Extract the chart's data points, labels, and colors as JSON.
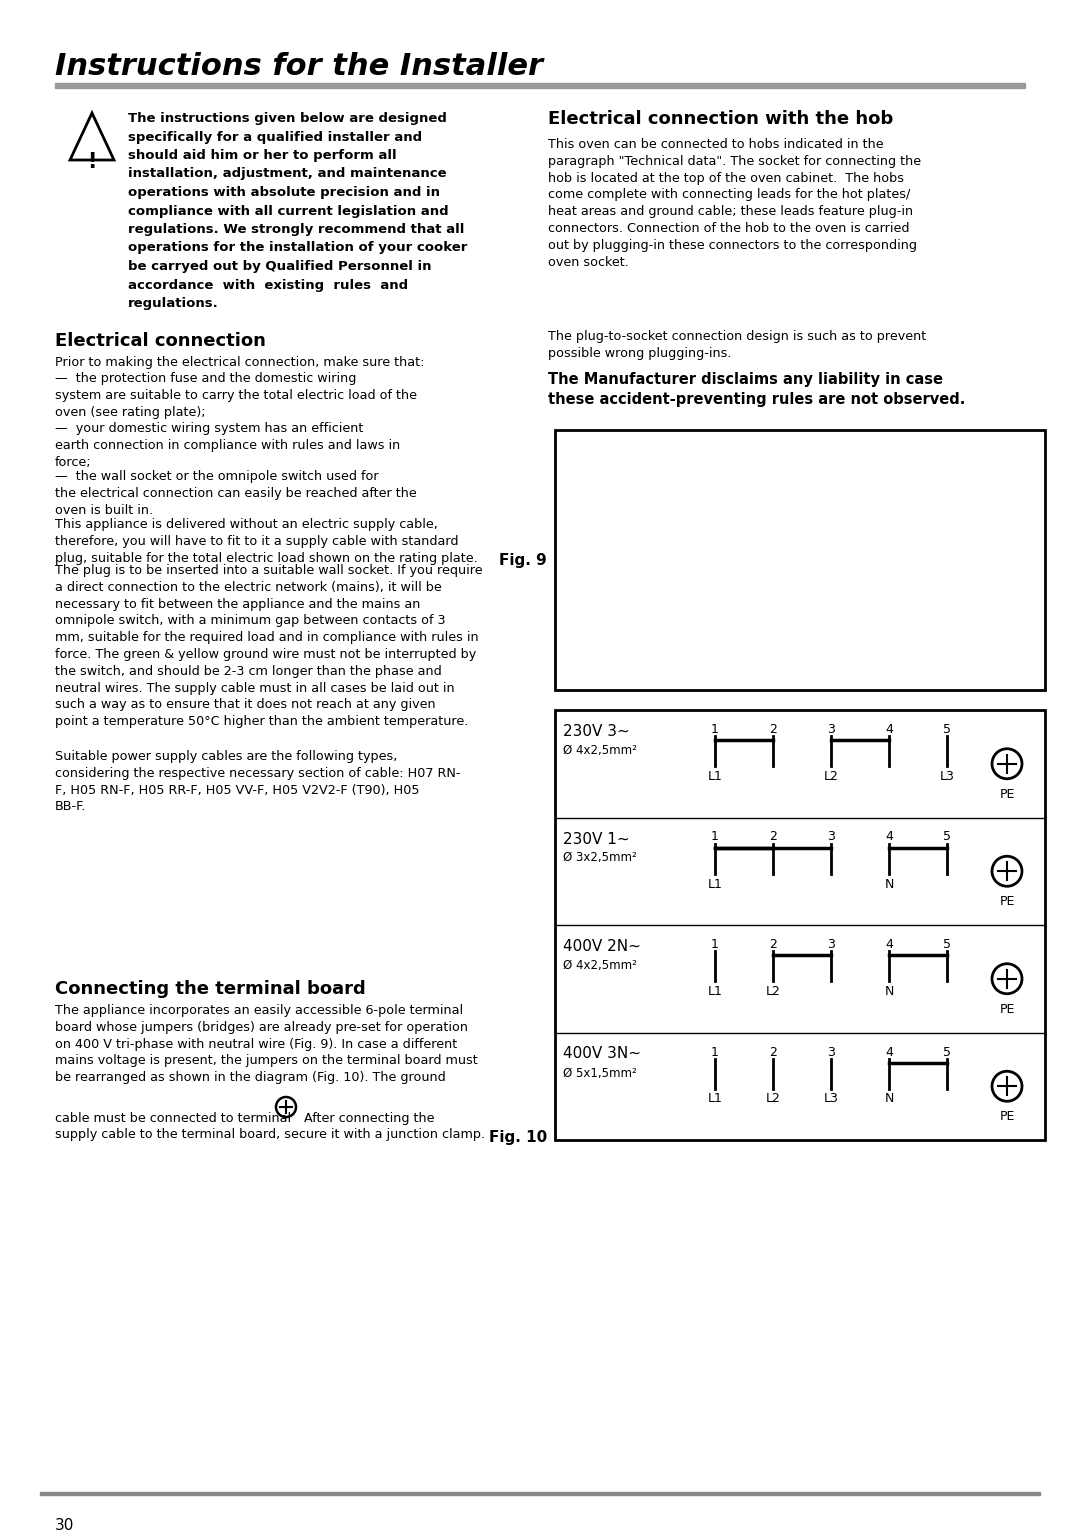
{
  "title": "Instructions for the Installer",
  "page_number": "30",
  "background_color": "#ffffff",
  "text_color": "#000000",
  "warning_lines": [
    "The instructions given below are designed",
    "specifically for a qualified installer and",
    "should aid him or her to perform all",
    "installation, adjustment, and maintenance",
    "operations with absolute precision and in",
    "compliance with all current legislation and",
    "regulations. We strongly recommend that all",
    "operations for the installation of your cooker",
    "be carryed out by Qualified Personnel in",
    "accordance  with  existing  rules  and",
    "regulations."
  ],
  "ec_heading": "Electrical connection",
  "ec_para0": "Prior to making the electrical connection, make sure that:",
  "ec_para1": "—  the protection fuse and the domestic wiring\nsystem are suitable to carry the total electric load of the\noven (see rating plate);",
  "ec_para2": "—  your domestic wiring system has an efficient\nearth connection in compliance with rules and laws in\nforce;",
  "ec_para3": "—  the wall socket or the omnipole switch used for\nthe electrical connection can easily be reached after the\noven is built in.",
  "ec_para4": "This appliance is delivered without an electric supply cable,\ntherefore, you will have to fit to it a supply cable with standard\nplug, suitable for the total electric load shown on the rating plate.",
  "ec_para5": "The plug is to be inserted into a suitable wall socket. If you require\na direct connection to the electric network (mains), it will be\nnecessary to fit between the appliance and the mains an\nomnipole switch, with a minimum gap between contacts of 3\nmm, suitable for the required load and in compliance with rules in\nforce. The green & yellow ground wire must not be interrupted by\nthe switch, and should be 2-3 cm longer than the phase and\nneutral wires. The supply cable must in all cases be laid out in\nsuch a way as to ensure that it does not reach at any given\npoint a temperature 50°C higher than the ambient temperature.",
  "ec_para6": "Suitable power supply cables are the following types,\nconsidering the respective necessary section of cable: H07 RN-\nF, H05 RN-F, H05 RR-F, H05 VV-F, H05 V2V2-F (T90), H05\nBB-F.",
  "ctb_heading": "Connecting the terminal board",
  "ctb_para1": "The appliance incorporates an easily accessible 6-pole terminal\nboard whose jumpers (bridges) are already pre-set for operation\non 400 V tri-phase with neutral wire (Fig. 9). In case a different\nmains voltage is present, the jumpers on the terminal board must\nbe rearranged as shown in the diagram (Fig. 10). The ground",
  "ctb_para2a": "cable must be connected to terminal",
  "ctb_para2b": " After connecting the",
  "ctb_para3": "supply cable to the terminal board, secure it with a junction clamp.",
  "hob_heading": "Electrical connection with the hob",
  "hob_para1": "This oven can be connected to hobs indicated in the\nparagraph \"Technical data\". The socket for connecting the\nhob is located at the top of the oven cabinet.  The hobs\ncome complete with connecting leads for the hot plates/\nheat areas and ground cable; these leads feature plug-in\nconnectors. Connection of the hob to the oven is carried\nout by plugging-in these connectors to the corresponding\noven socket.",
  "hob_para2": "The plug-to-socket connection design is such as to prevent\npossible wrong plugging-ins.",
  "disclaimer": "The Manufacturer disclaims any liability in case\nthese accident-preventing rules are not observed.",
  "fig9_label": "Fig. 9",
  "fig10_label": "Fig. 10",
  "row_labels": [
    "230V 3~",
    "230V 1~",
    "400V 2N~",
    "400V 3N~"
  ],
  "row_cables": [
    "Ø 4x2,5mm²",
    "Ø 3x2,5mm²",
    "Ø 4x2,5mm²",
    "Ø 5x1,5mm²"
  ],
  "row_bridges": [
    [
      [
        1,
        2
      ],
      [
        3,
        4
      ]
    ],
    [
      [
        1,
        2
      ],
      [
        1,
        3
      ],
      [
        4,
        5
      ]
    ],
    [
      [
        2,
        3
      ],
      [
        4,
        5
      ]
    ],
    [
      [
        4,
        5
      ]
    ]
  ],
  "row_term_labels": [
    [
      [
        0,
        "L1"
      ],
      [
        2,
        "L2"
      ],
      [
        4,
        "L3"
      ]
    ],
    [
      [
        0,
        "L1"
      ],
      [
        3,
        "N"
      ]
    ],
    [
      [
        0,
        "L1"
      ],
      [
        1,
        "L2"
      ],
      [
        3,
        "N"
      ]
    ],
    [
      [
        0,
        "L1"
      ],
      [
        1,
        "L2"
      ],
      [
        2,
        "L3"
      ],
      [
        3,
        "N"
      ]
    ]
  ]
}
